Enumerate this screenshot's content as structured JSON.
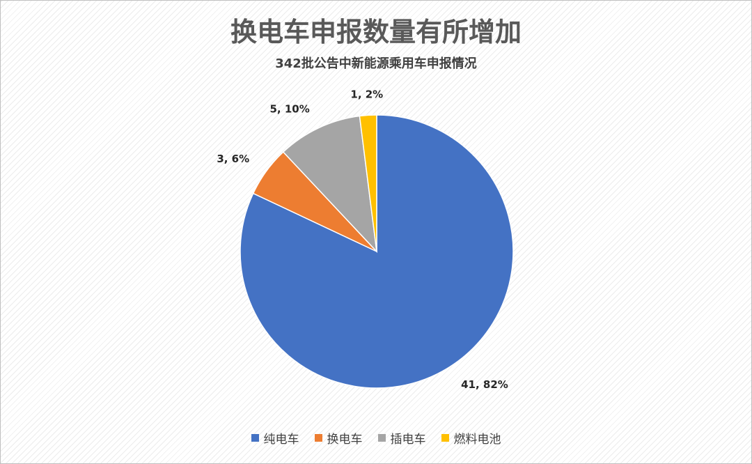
{
  "chart_data": {
    "type": "pie",
    "title": "换电车申报数量有所增加",
    "subtitle": "342批公告中新能源乘用车申报情况",
    "categories": [
      "纯电车",
      "换电车",
      "插电车",
      "燃料电池"
    ],
    "values": [
      41,
      3,
      5,
      1
    ],
    "percentages": [
      "82%",
      "6%",
      "10%",
      "2%"
    ],
    "data_labels": [
      "41, 82%",
      "3, 6%",
      "5, 10%",
      "1, 2%"
    ],
    "colors": [
      "#4472C4",
      "#ED7D31",
      "#A5A5A5",
      "#FFC000"
    ],
    "legend": "bottom"
  }
}
